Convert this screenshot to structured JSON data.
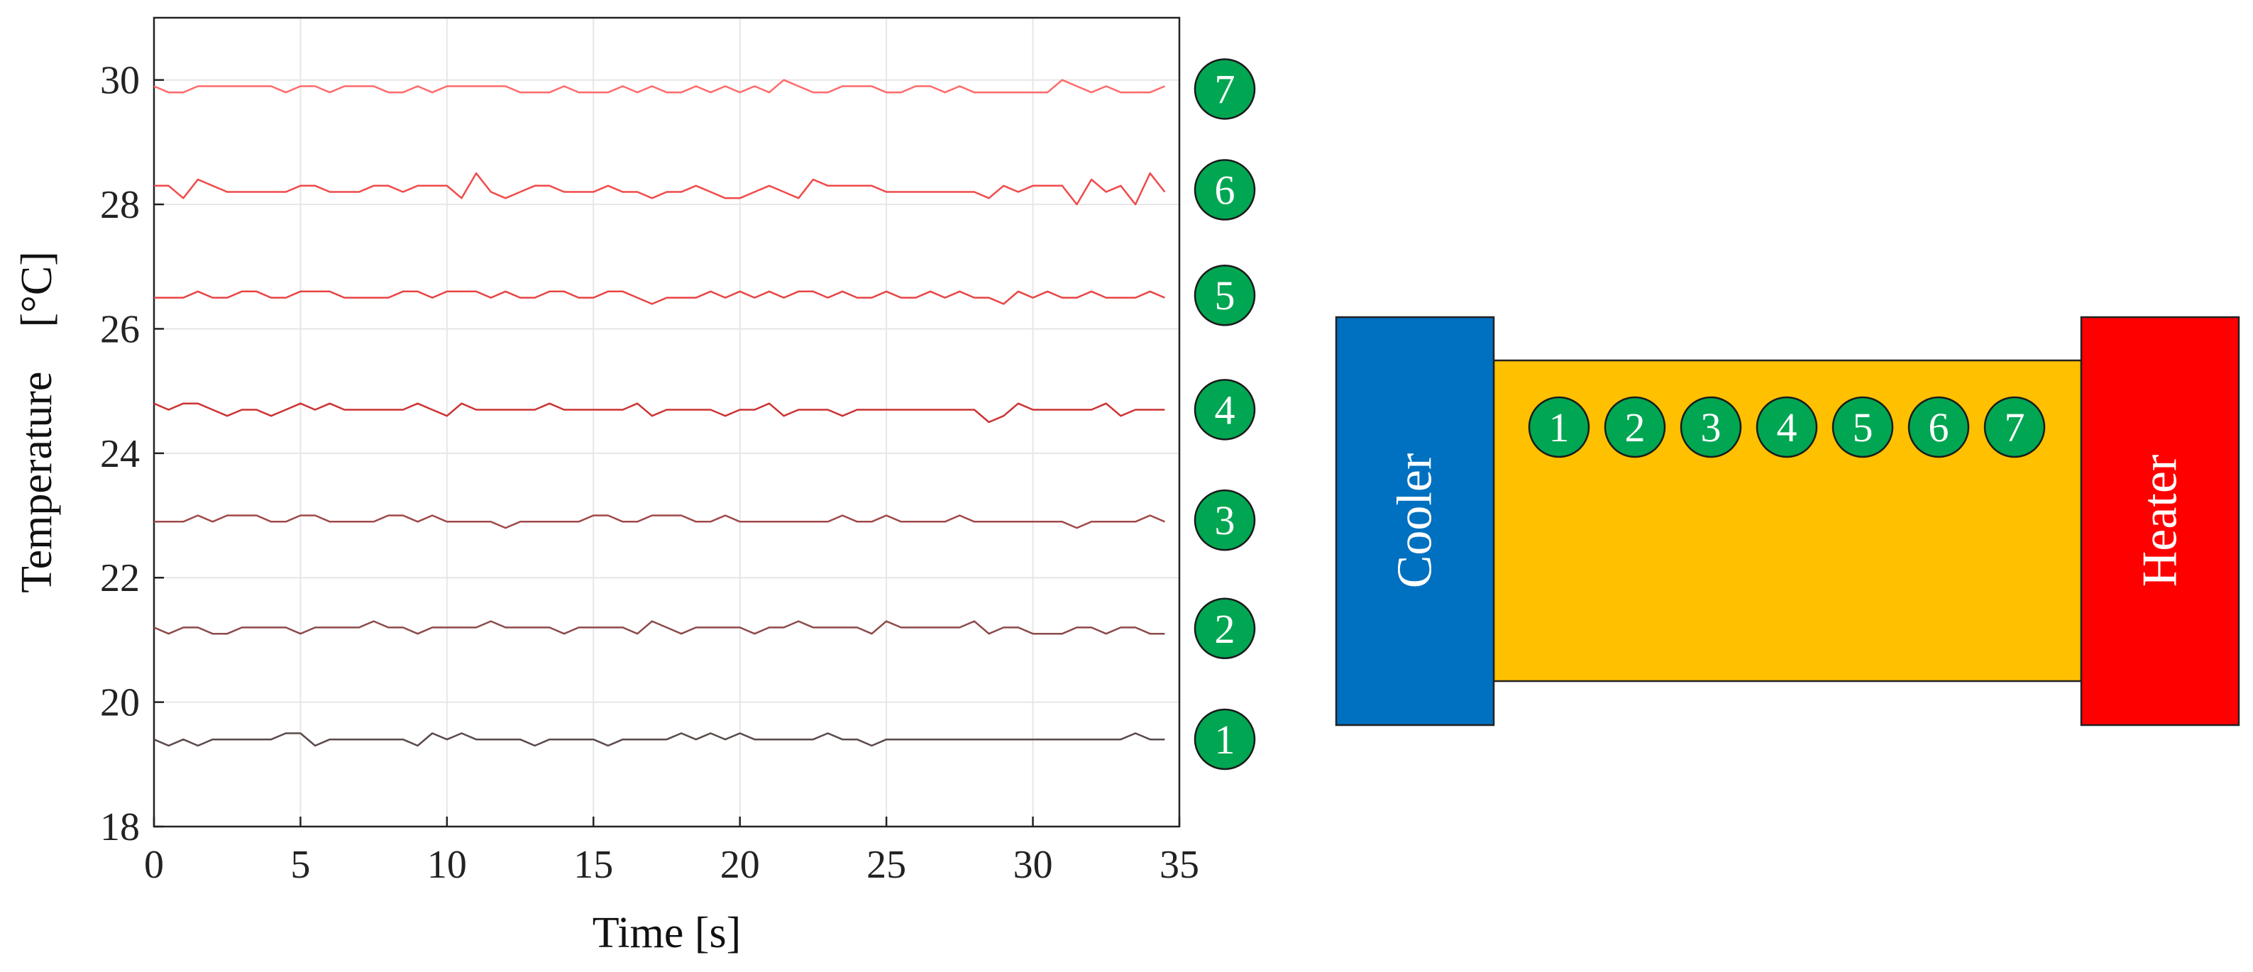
{
  "chart_data": {
    "type": "line",
    "xlabel": "Time [s]",
    "ylabel": "Temperature    [°C]",
    "xlim": [
      0,
      35
    ],
    "ylim": [
      18,
      31
    ],
    "xticks": [
      0,
      5,
      10,
      15,
      20,
      25,
      30,
      35
    ],
    "yticks": [
      18,
      20,
      22,
      24,
      26,
      28,
      30
    ],
    "grid": true,
    "x": [
      0,
      0.5,
      1,
      1.5,
      2,
      2.5,
      3,
      3.5,
      4,
      4.5,
      5,
      5.5,
      6,
      6.5,
      7,
      7.5,
      8,
      8.5,
      9,
      9.5,
      10,
      10.5,
      11,
      11.5,
      12,
      12.5,
      13,
      13.5,
      14,
      14.5,
      15,
      15.5,
      16,
      16.5,
      17,
      17.5,
      18,
      18.5,
      19,
      19.5,
      20,
      20.5,
      21,
      21.5,
      22,
      22.5,
      23,
      23.5,
      24,
      24.5,
      25,
      25.5,
      26,
      26.5,
      27,
      27.5,
      28,
      28.5,
      29,
      29.5,
      30,
      30.5,
      31,
      31.5,
      32,
      32.5,
      33,
      33.5,
      34,
      34.5
    ],
    "series": [
      {
        "name": "1",
        "color": "#5a4a4a",
        "values": [
          19.4,
          19.3,
          19.4,
          19.3,
          19.4,
          19.4,
          19.4,
          19.4,
          19.4,
          19.5,
          19.5,
          19.3,
          19.4,
          19.4,
          19.4,
          19.4,
          19.4,
          19.4,
          19.3,
          19.5,
          19.4,
          19.5,
          19.4,
          19.4,
          19.4,
          19.4,
          19.3,
          19.4,
          19.4,
          19.4,
          19.4,
          19.3,
          19.4,
          19.4,
          19.4,
          19.4,
          19.5,
          19.4,
          19.5,
          19.4,
          19.5,
          19.4,
          19.4,
          19.4,
          19.4,
          19.4,
          19.5,
          19.4,
          19.4,
          19.3,
          19.4,
          19.4,
          19.4,
          19.4,
          19.4,
          19.4,
          19.4,
          19.4,
          19.4,
          19.4,
          19.4,
          19.4,
          19.4,
          19.4,
          19.4,
          19.4,
          19.4,
          19.5,
          19.4,
          19.4
        ]
      },
      {
        "name": "2",
        "color": "#8b4a4a",
        "values": [
          21.2,
          21.1,
          21.2,
          21.2,
          21.1,
          21.1,
          21.2,
          21.2,
          21.2,
          21.2,
          21.1,
          21.2,
          21.2,
          21.2,
          21.2,
          21.3,
          21.2,
          21.2,
          21.1,
          21.2,
          21.2,
          21.2,
          21.2,
          21.3,
          21.2,
          21.2,
          21.2,
          21.2,
          21.1,
          21.2,
          21.2,
          21.2,
          21.2,
          21.1,
          21.3,
          21.2,
          21.1,
          21.2,
          21.2,
          21.2,
          21.2,
          21.1,
          21.2,
          21.2,
          21.3,
          21.2,
          21.2,
          21.2,
          21.2,
          21.1,
          21.3,
          21.2,
          21.2,
          21.2,
          21.2,
          21.2,
          21.3,
          21.1,
          21.2,
          21.2,
          21.1,
          21.1,
          21.1,
          21.2,
          21.2,
          21.1,
          21.2,
          21.2,
          21.1,
          21.1
        ]
      },
      {
        "name": "3",
        "color": "#a04848",
        "values": [
          22.9,
          22.9,
          22.9,
          23.0,
          22.9,
          23.0,
          23.0,
          23.0,
          22.9,
          22.9,
          23.0,
          23.0,
          22.9,
          22.9,
          22.9,
          22.9,
          23.0,
          23.0,
          22.9,
          23.0,
          22.9,
          22.9,
          22.9,
          22.9,
          22.8,
          22.9,
          22.9,
          22.9,
          22.9,
          22.9,
          23.0,
          23.0,
          22.9,
          22.9,
          23.0,
          23.0,
          23.0,
          22.9,
          22.9,
          23.0,
          22.9,
          22.9,
          22.9,
          22.9,
          22.9,
          22.9,
          22.9,
          23.0,
          22.9,
          22.9,
          23.0,
          22.9,
          22.9,
          22.9,
          22.9,
          23.0,
          22.9,
          22.9,
          22.9,
          22.9,
          22.9,
          22.9,
          22.9,
          22.8,
          22.9,
          22.9,
          22.9,
          22.9,
          23.0,
          22.9
        ]
      },
      {
        "name": "4",
        "color": "#cc3333",
        "values": [
          24.8,
          24.7,
          24.8,
          24.8,
          24.7,
          24.6,
          24.7,
          24.7,
          24.6,
          24.7,
          24.8,
          24.7,
          24.8,
          24.7,
          24.7,
          24.7,
          24.7,
          24.7,
          24.8,
          24.7,
          24.6,
          24.8,
          24.7,
          24.7,
          24.7,
          24.7,
          24.7,
          24.8,
          24.7,
          24.7,
          24.7,
          24.7,
          24.7,
          24.8,
          24.6,
          24.7,
          24.7,
          24.7,
          24.7,
          24.6,
          24.7,
          24.7,
          24.8,
          24.6,
          24.7,
          24.7,
          24.7,
          24.6,
          24.7,
          24.7,
          24.7,
          24.7,
          24.7,
          24.7,
          24.7,
          24.7,
          24.7,
          24.5,
          24.6,
          24.8,
          24.7,
          24.7,
          24.7,
          24.7,
          24.7,
          24.8,
          24.6,
          24.7,
          24.7,
          24.7
        ]
      },
      {
        "name": "5",
        "color": "#e84444",
        "values": [
          26.5,
          26.5,
          26.5,
          26.6,
          26.5,
          26.5,
          26.6,
          26.6,
          26.5,
          26.5,
          26.6,
          26.6,
          26.6,
          26.5,
          26.5,
          26.5,
          26.5,
          26.6,
          26.6,
          26.5,
          26.6,
          26.6,
          26.6,
          26.5,
          26.6,
          26.5,
          26.5,
          26.6,
          26.6,
          26.5,
          26.5,
          26.6,
          26.6,
          26.5,
          26.4,
          26.5,
          26.5,
          26.5,
          26.6,
          26.5,
          26.6,
          26.5,
          26.6,
          26.5,
          26.6,
          26.6,
          26.5,
          26.6,
          26.5,
          26.5,
          26.6,
          26.5,
          26.5,
          26.6,
          26.5,
          26.6,
          26.5,
          26.5,
          26.4,
          26.6,
          26.5,
          26.6,
          26.5,
          26.5,
          26.6,
          26.5,
          26.5,
          26.5,
          26.6,
          26.5
        ]
      },
      {
        "name": "6",
        "color": "#f04a4a",
        "values": [
          28.3,
          28.3,
          28.1,
          28.4,
          28.3,
          28.2,
          28.2,
          28.2,
          28.2,
          28.2,
          28.3,
          28.3,
          28.2,
          28.2,
          28.2,
          28.3,
          28.3,
          28.2,
          28.3,
          28.3,
          28.3,
          28.1,
          28.5,
          28.2,
          28.1,
          28.2,
          28.3,
          28.3,
          28.2,
          28.2,
          28.2,
          28.3,
          28.2,
          28.2,
          28.1,
          28.2,
          28.2,
          28.3,
          28.2,
          28.1,
          28.1,
          28.2,
          28.3,
          28.2,
          28.1,
          28.4,
          28.3,
          28.3,
          28.3,
          28.3,
          28.2,
          28.2,
          28.2,
          28.2,
          28.2,
          28.2,
          28.2,
          28.1,
          28.3,
          28.2,
          28.3,
          28.3,
          28.3,
          28.0,
          28.4,
          28.2,
          28.3,
          28.0,
          28.5,
          28.2
        ]
      },
      {
        "name": "7",
        "color": "#ff6a6a",
        "values": [
          29.9,
          29.8,
          29.8,
          29.9,
          29.9,
          29.9,
          29.9,
          29.9,
          29.9,
          29.8,
          29.9,
          29.9,
          29.8,
          29.9,
          29.9,
          29.9,
          29.8,
          29.8,
          29.9,
          29.8,
          29.9,
          29.9,
          29.9,
          29.9,
          29.9,
          29.8,
          29.8,
          29.8,
          29.9,
          29.8,
          29.8,
          29.8,
          29.9,
          29.8,
          29.9,
          29.8,
          29.8,
          29.9,
          29.8,
          29.9,
          29.8,
          29.9,
          29.8,
          30.0,
          29.9,
          29.8,
          29.8,
          29.9,
          29.9,
          29.9,
          29.8,
          29.8,
          29.9,
          29.9,
          29.8,
          29.9,
          29.8,
          29.8,
          29.8,
          29.8,
          29.8,
          29.8,
          30.0,
          29.9,
          29.8,
          29.9,
          29.8,
          29.8,
          29.8,
          29.9
        ]
      }
    ]
  },
  "marker_color": "#00a651",
  "diagram": {
    "cooler": {
      "label": "Cooler",
      "color": "#0070c0"
    },
    "heater": {
      "label": "Heater",
      "color": "#ff0000"
    },
    "bar_color": "#ffc000",
    "sensors": [
      "1",
      "2",
      "3",
      "4",
      "5",
      "6",
      "7"
    ]
  }
}
